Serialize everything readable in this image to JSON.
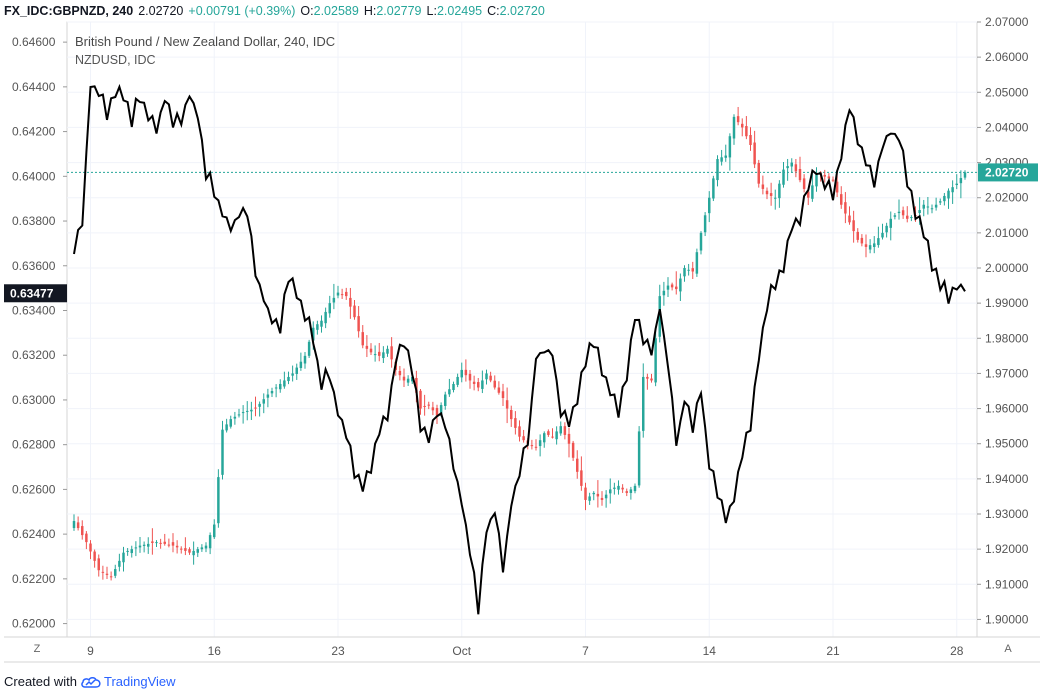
{
  "header": {
    "symbol": "FX_IDC:GBPNZD, 240",
    "last": "2.02720",
    "change": "+0.00791 (+0.39%)",
    "open_label": "O:",
    "open": "2.02589",
    "high_label": "H:",
    "high": "2.02779",
    "low_label": "L:",
    "low": "2.02495",
    "close_label": "C:",
    "close": "2.02720"
  },
  "legend": {
    "title": "British Pound / New Zealand Dollar, 240, IDC",
    "subtitle": "NZDUSD, IDC"
  },
  "colors": {
    "up": "#26a69a",
    "down": "#ef5350",
    "line": "#000000",
    "last_price_bg": "#26a69a",
    "left_marker_bg": "#131722",
    "grid": "#f0f3fa"
  },
  "buttons": {
    "left_corner": "Z",
    "right_corner": "A"
  },
  "footer": {
    "created_with": "Created with",
    "brand": "TradingView"
  },
  "chart_data": {
    "type": "candlestick+line",
    "x_ticks": [
      {
        "label": "9",
        "idx": 4
      },
      {
        "label": "16",
        "idx": 34
      },
      {
        "label": "23",
        "idx": 64
      },
      {
        "label": "Oct",
        "idx": 94
      },
      {
        "label": "7",
        "idx": 124
      },
      {
        "label": "14",
        "idx": 154
      },
      {
        "label": "21",
        "idx": 184
      },
      {
        "label": "28",
        "idx": 214
      }
    ],
    "n_bars": 217,
    "right_axis": {
      "name": "GBPNZD",
      "ticks": [
        "2.07000",
        "2.06000",
        "2.05000",
        "2.04000",
        "2.03000",
        "2.02000",
        "2.01000",
        "2.00000",
        "1.99000",
        "1.98000",
        "1.97000",
        "1.96000",
        "1.95000",
        "1.94000",
        "1.93000",
        "1.92000",
        "1.91000",
        "1.90000"
      ],
      "range": [
        1.895,
        2.07
      ],
      "last_value": "2.02720",
      "last_value_num": 2.0272
    },
    "left_axis": {
      "name": "NZDUSD",
      "ticks": [
        "0.64600",
        "0.64400",
        "0.64200",
        "0.64000",
        "0.63800",
        "0.63600",
        "0.63400",
        "0.63200",
        "0.63000",
        "0.62800",
        "0.62600",
        "0.62400",
        "0.62200",
        "0.62000"
      ],
      "range": [
        0.6194,
        0.6469
      ],
      "last_value": "0.63477",
      "last_value_num": 0.63477
    },
    "gbpnzd_close_anchors": [
      [
        0,
        1.928
      ],
      [
        3,
        1.922
      ],
      [
        6,
        1.914
      ],
      [
        9,
        1.912
      ],
      [
        12,
        1.919
      ],
      [
        16,
        1.921
      ],
      [
        20,
        1.922
      ],
      [
        24,
        1.921
      ],
      [
        28,
        1.919
      ],
      [
        32,
        1.921
      ],
      [
        34,
        1.927
      ],
      [
        36,
        1.954
      ],
      [
        38,
        1.957
      ],
      [
        41,
        1.959
      ],
      [
        44,
        1.96
      ],
      [
        47,
        1.964
      ],
      [
        50,
        1.967
      ],
      [
        53,
        1.97
      ],
      [
        56,
        1.975
      ],
      [
        58,
        1.983
      ],
      [
        60,
        1.985
      ],
      [
        62,
        1.99
      ],
      [
        64,
        1.993
      ],
      [
        66,
        1.992
      ],
      [
        68,
        1.986
      ],
      [
        70,
        1.978
      ],
      [
        72,
        1.976
      ],
      [
        74,
        1.975
      ],
      [
        76,
        1.977
      ],
      [
        78,
        1.971
      ],
      [
        80,
        1.968
      ],
      [
        82,
        1.969
      ],
      [
        84,
        1.96
      ],
      [
        86,
        1.961
      ],
      [
        88,
        1.958
      ],
      [
        90,
        1.964
      ],
      [
        92,
        1.967
      ],
      [
        94,
        1.971
      ],
      [
        96,
        1.968
      ],
      [
        98,
        1.966
      ],
      [
        100,
        1.97
      ],
      [
        102,
        1.966
      ],
      [
        104,
        1.963
      ],
      [
        106,
        1.957
      ],
      [
        108,
        1.952
      ],
      [
        110,
        1.95
      ],
      [
        112,
        1.949
      ],
      [
        114,
        1.953
      ],
      [
        116,
        1.952
      ],
      [
        118,
        1.955
      ],
      [
        120,
        1.95
      ],
      [
        122,
        1.942
      ],
      [
        124,
        1.934
      ],
      [
        126,
        1.936
      ],
      [
        128,
        1.934
      ],
      [
        130,
        1.937
      ],
      [
        132,
        1.938
      ],
      [
        134,
        1.936
      ],
      [
        136,
        1.938
      ],
      [
        138,
        1.969
      ],
      [
        140,
        1.968
      ],
      [
        142,
        1.992
      ],
      [
        144,
        1.995
      ],
      [
        146,
        1.994
      ],
      [
        148,
        2.0
      ],
      [
        150,
        1.999
      ],
      [
        152,
        2.01
      ],
      [
        154,
        2.02
      ],
      [
        156,
        2.031
      ],
      [
        158,
        2.032
      ],
      [
        160,
        2.043
      ],
      [
        162,
        2.04
      ],
      [
        164,
        2.035
      ],
      [
        166,
        2.024
      ],
      [
        168,
        2.021
      ],
      [
        170,
        2.02
      ],
      [
        172,
        2.028
      ],
      [
        174,
        2.03
      ],
      [
        176,
        2.025
      ],
      [
        178,
        2.02
      ],
      [
        180,
        2.027
      ],
      [
        182,
        2.026
      ],
      [
        184,
        2.025
      ],
      [
        186,
        2.018
      ],
      [
        188,
        2.013
      ],
      [
        190,
        2.008
      ],
      [
        192,
        2.006
      ],
      [
        194,
        2.007
      ],
      [
        196,
        2.01
      ],
      [
        198,
        2.014
      ],
      [
        200,
        2.016
      ],
      [
        202,
        2.014
      ],
      [
        204,
        2.015
      ],
      [
        206,
        2.018
      ],
      [
        208,
        2.017
      ],
      [
        210,
        2.019
      ],
      [
        212,
        2.022
      ],
      [
        214,
        2.024
      ],
      [
        216,
        2.0272
      ]
    ],
    "nzdusd_anchors": [
      [
        0,
        0.6369
      ],
      [
        2,
        0.6381
      ],
      [
        4,
        0.644
      ],
      [
        6,
        0.6439
      ],
      [
        8,
        0.6428
      ],
      [
        10,
        0.6439
      ],
      [
        12,
        0.6435
      ],
      [
        14,
        0.6425
      ],
      [
        16,
        0.6437
      ],
      [
        18,
        0.6428
      ],
      [
        20,
        0.642
      ],
      [
        22,
        0.6436
      ],
      [
        24,
        0.6424
      ],
      [
        26,
        0.6425
      ],
      [
        28,
        0.6436
      ],
      [
        30,
        0.6426
      ],
      [
        32,
        0.6402
      ],
      [
        34,
        0.6394
      ],
      [
        36,
        0.6384
      ],
      [
        38,
        0.6378
      ],
      [
        40,
        0.6382
      ],
      [
        42,
        0.6383
      ],
      [
        44,
        0.6356
      ],
      [
        46,
        0.6345
      ],
      [
        48,
        0.6337
      ],
      [
        50,
        0.6333
      ],
      [
        52,
        0.6355
      ],
      [
        54,
        0.6346
      ],
      [
        56,
        0.6339
      ],
      [
        58,
        0.6327
      ],
      [
        60,
        0.6308
      ],
      [
        62,
        0.6312
      ],
      [
        64,
        0.6294
      ],
      [
        66,
        0.6284
      ],
      [
        68,
        0.6268
      ],
      [
        70,
        0.626
      ],
      [
        72,
        0.627
      ],
      [
        74,
        0.6285
      ],
      [
        76,
        0.6294
      ],
      [
        78,
        0.6318
      ],
      [
        80,
        0.6325
      ],
      [
        82,
        0.6312
      ],
      [
        84,
        0.6289
      ],
      [
        86,
        0.6283
      ],
      [
        88,
        0.6296
      ],
      [
        90,
        0.6288
      ],
      [
        92,
        0.627
      ],
      [
        94,
        0.6253
      ],
      [
        96,
        0.6234
      ],
      [
        98,
        0.6207
      ],
      [
        100,
        0.6241
      ],
      [
        102,
        0.625
      ],
      [
        104,
        0.6224
      ],
      [
        106,
        0.6254
      ],
      [
        108,
        0.6268
      ],
      [
        110,
        0.6281
      ],
      [
        112,
        0.6319
      ],
      [
        114,
        0.6322
      ],
      [
        116,
        0.632
      ],
      [
        118,
        0.6296
      ],
      [
        120,
        0.629
      ],
      [
        122,
        0.6302
      ],
      [
        124,
        0.6318
      ],
      [
        126,
        0.6327
      ],
      [
        128,
        0.6312
      ],
      [
        130,
        0.6303
      ],
      [
        132,
        0.6294
      ],
      [
        134,
        0.631
      ],
      [
        136,
        0.6338
      ],
      [
        138,
        0.6328
      ],
      [
        140,
        0.6322
      ],
      [
        142,
        0.6341
      ],
      [
        144,
        0.6315
      ],
      [
        146,
        0.628
      ],
      [
        148,
        0.63
      ],
      [
        150,
        0.6288
      ],
      [
        152,
        0.6305
      ],
      [
        154,
        0.627
      ],
      [
        156,
        0.626
      ],
      [
        158,
        0.6245
      ],
      [
        160,
        0.6256
      ],
      [
        162,
        0.6275
      ],
      [
        164,
        0.629
      ],
      [
        166,
        0.6318
      ],
      [
        168,
        0.6343
      ],
      [
        170,
        0.6352
      ],
      [
        172,
        0.636
      ],
      [
        174,
        0.6376
      ],
      [
        176,
        0.638
      ],
      [
        178,
        0.6396
      ],
      [
        180,
        0.6402
      ],
      [
        182,
        0.6397
      ],
      [
        184,
        0.6393
      ],
      [
        186,
        0.6411
      ],
      [
        188,
        0.6432
      ],
      [
        190,
        0.6415
      ],
      [
        192,
        0.6405
      ],
      [
        194,
        0.6398
      ],
      [
        196,
        0.6415
      ],
      [
        198,
        0.642
      ],
      [
        200,
        0.6417
      ],
      [
        202,
        0.6398
      ],
      [
        204,
        0.6384
      ],
      [
        206,
        0.6375
      ],
      [
        208,
        0.636
      ],
      [
        210,
        0.6353
      ],
      [
        212,
        0.6347
      ],
      [
        214,
        0.6352
      ],
      [
        216,
        0.6349
      ]
    ]
  }
}
